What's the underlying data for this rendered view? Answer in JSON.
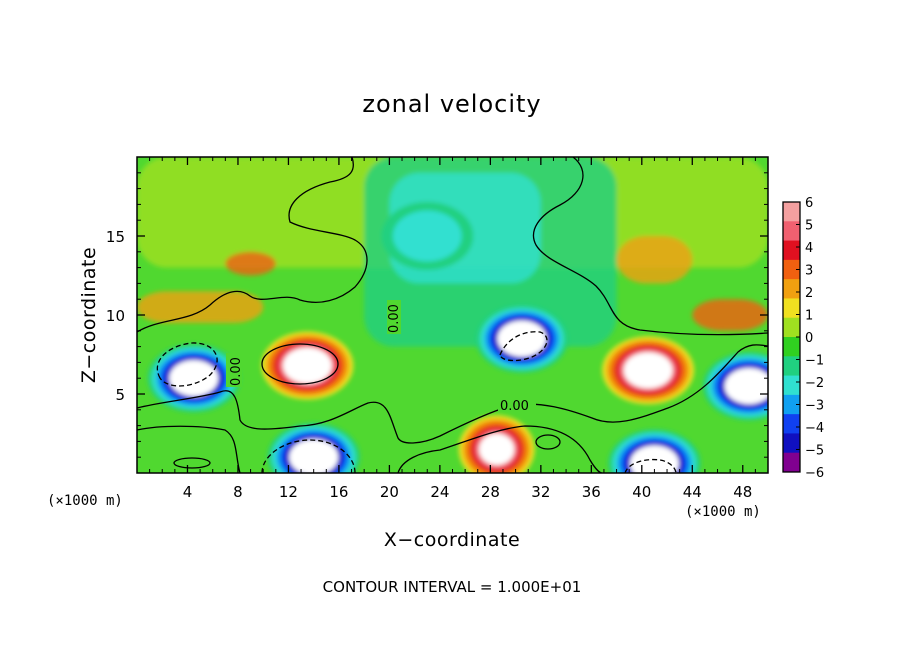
{
  "chart_data": {
    "type": "heatmap",
    "title": "zonal velocity",
    "xlabel": "X−coordinate",
    "ylabel": "Z−coordinate",
    "x_unit_left": "(×1000 m)",
    "x_unit_right": "(×1000 m)",
    "xlim": [
      0,
      50
    ],
    "ylim": [
      0,
      20
    ],
    "x_ticks": [
      "4",
      "8",
      "12",
      "16",
      "20",
      "24",
      "28",
      "32",
      "36",
      "40",
      "44",
      "48"
    ],
    "x_tick_values": [
      4,
      8,
      12,
      16,
      20,
      24,
      28,
      32,
      36,
      40,
      44,
      48
    ],
    "y_ticks": [
      "5",
      "10",
      "15"
    ],
    "y_tick_values": [
      5,
      10,
      15
    ],
    "colorbar": {
      "labels": [
        "6",
        "5",
        "4",
        "3",
        "2",
        "1",
        "0",
        "−1",
        "−2",
        "−3",
        "−4",
        "−5",
        "−6"
      ],
      "range": [
        -6,
        6
      ],
      "colors": [
        "#f4a0a0",
        "#f06070",
        "#e01020",
        "#f06010",
        "#f0a010",
        "#f0e020",
        "#a0e020",
        "#30d020",
        "#20d080",
        "#30e0d0",
        "#10a0f0",
        "#1040f0",
        "#1010c0",
        "#800090"
      ]
    },
    "features": [
      {
        "center": [
          4.5,
          6.0
        ],
        "value": -7
      },
      {
        "center": [
          13.5,
          6.8
        ],
        "value": 7
      },
      {
        "center": [
          30.5,
          8.5
        ],
        "value": -7
      },
      {
        "center": [
          40.5,
          6.5
        ],
        "value": 6.5
      },
      {
        "center": [
          48.5,
          5.5
        ],
        "value": -7
      },
      {
        "center": [
          14.0,
          1.0
        ],
        "value": -7
      },
      {
        "center": [
          28.5,
          1.5
        ],
        "value": 6
      },
      {
        "center": [
          41.0,
          0.6
        ],
        "value": -7
      },
      {
        "center": [
          23.0,
          15.0
        ],
        "value": -2
      }
    ],
    "contour_labels": [
      "0.00",
      "0.00",
      "0.00"
    ],
    "footer": "CONTOUR INTERVAL = 1.000E+01"
  }
}
